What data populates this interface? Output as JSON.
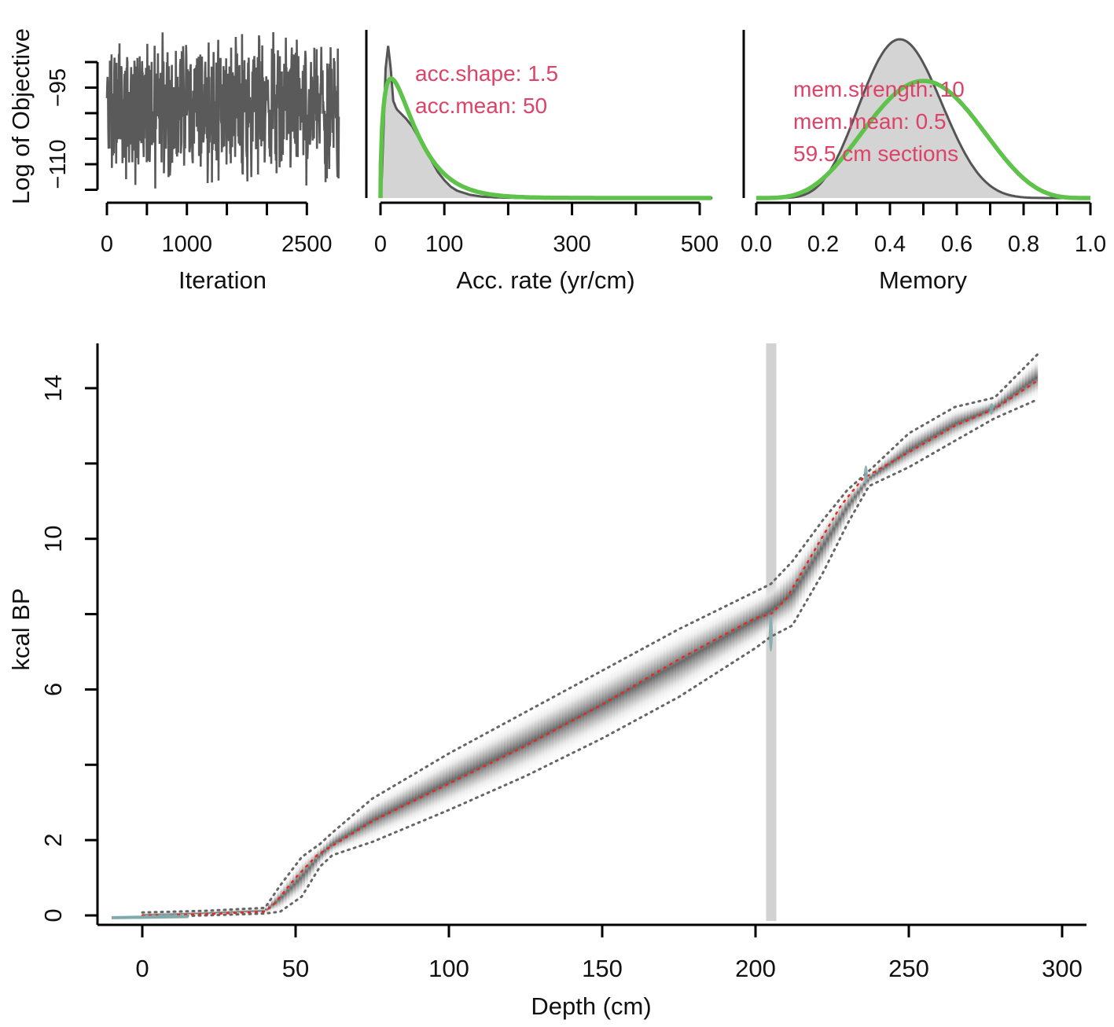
{
  "colors": {
    "trace": "#5a5a5a",
    "prior": "#5fc24a",
    "posterior_fill": "#d4d4d4",
    "posterior_line": "#555555",
    "mean_line": "#e8281e",
    "annotation": "#dc4368",
    "date_marker": "#7fa9aa",
    "hiatus_band": "#d2d2d2"
  },
  "chart_data": [
    {
      "id": "iterations",
      "type": "line",
      "xlabel": "Iteration",
      "ylabel": "Log of Objective",
      "xlim": [
        0,
        2900
      ],
      "ylim": [
        -116,
        -84
      ],
      "xticks": [
        0,
        500,
        1000,
        1500,
        2000,
        2500
      ],
      "xticklabels": [
        {
          "v": 0,
          "t": "0"
        },
        {
          "v": 1000,
          "t": "1000"
        },
        {
          "v": 2500,
          "t": "2500"
        }
      ],
      "yticks": [
        -90,
        -95,
        -100,
        -105,
        -110,
        -115
      ],
      "yticklabels": [
        {
          "v": -95,
          "t": "−95"
        },
        {
          "v": -110,
          "t": "−110"
        }
      ],
      "n_iterations": 2900,
      "mean": -99,
      "range": [
        -116,
        -84
      ]
    },
    {
      "id": "acc-rate",
      "type": "area",
      "xlabel": "Acc. rate (yr/cm)",
      "xlim": [
        0,
        520
      ],
      "xticks": [
        0,
        100,
        200,
        300,
        400,
        500
      ],
      "xticklabels": [
        {
          "v": 0,
          "t": "0"
        },
        {
          "v": 100,
          "t": "100"
        },
        {
          "v": 300,
          "t": "300"
        },
        {
          "v": 500,
          "t": "500"
        }
      ],
      "prior": {
        "distribution": "gamma",
        "shape": 1.5,
        "mean": 50
      },
      "posterior": {
        "x": [
          0,
          2,
          5,
          8,
          12,
          16,
          20,
          25,
          30,
          40,
          50,
          60,
          70,
          80,
          90,
          100,
          110,
          120,
          140,
          160,
          180,
          200,
          240,
          300,
          400,
          520
        ],
        "y": [
          0,
          0.12,
          0.45,
          0.8,
          0.94,
          0.8,
          0.6,
          0.55,
          0.53,
          0.49,
          0.44,
          0.37,
          0.3,
          0.23,
          0.16,
          0.11,
          0.07,
          0.045,
          0.02,
          0.008,
          0.004,
          0.002,
          0.0005,
          0,
          0,
          0
        ]
      },
      "annotations": [
        "acc.shape:  1.5",
        "acc.mean:  50"
      ]
    },
    {
      "id": "memory",
      "type": "area",
      "xlabel": "Memory",
      "xlim": [
        0,
        1
      ],
      "xticks": [
        0,
        0.1,
        0.2,
        0.3,
        0.4,
        0.5,
        0.6,
        0.7,
        0.8,
        0.9,
        1.0
      ],
      "xticklabels": [
        {
          "v": 0,
          "t": "0.0"
        },
        {
          "v": 0.2,
          "t": "0.2"
        },
        {
          "v": 0.4,
          "t": "0.4"
        },
        {
          "v": 0.6,
          "t": "0.6"
        },
        {
          "v": 0.8,
          "t": "0.8"
        },
        {
          "v": 1.0,
          "t": "1.0"
        }
      ],
      "prior": {
        "distribution": "beta",
        "strength": 10,
        "mean": 0.5
      },
      "posterior": {
        "shape": "beta",
        "a": 8,
        "b": 10.3
      },
      "annotations": [
        "mem.strength: 10",
        "mem.mean: 0.5",
        "59.5 cm sections"
      ]
    },
    {
      "id": "age-depth",
      "type": "line",
      "xlabel": "Depth (cm)",
      "ylabel": "kcal BP",
      "xlim": [
        -15,
        307
      ],
      "ylim": [
        -0.2,
        15.2
      ],
      "xticks": [
        0,
        50,
        100,
        150,
        200,
        250,
        300
      ],
      "yticks": [
        0,
        2,
        4,
        6,
        8,
        10,
        12,
        14
      ],
      "xticklabels": [
        {
          "v": 0,
          "t": "0"
        },
        {
          "v": 50,
          "t": "50"
        },
        {
          "v": 100,
          "t": "100"
        },
        {
          "v": 150,
          "t": "150"
        },
        {
          "v": 200,
          "t": "200"
        },
        {
          "v": 250,
          "t": "250"
        },
        {
          "v": 300,
          "t": "300"
        }
      ],
      "yticklabels": [
        {
          "v": 0,
          "t": "0"
        },
        {
          "v": 2,
          "t": "2"
        },
        {
          "v": 6,
          "t": "6"
        },
        {
          "v": 10,
          "t": "10"
        },
        {
          "v": 14,
          "t": "14"
        }
      ],
      "hiatus_depth": 205,
      "mean_age": {
        "depth": [
          0,
          20,
          40,
          43,
          50,
          57,
          62,
          75,
          100,
          125,
          150,
          175,
          200,
          205,
          210,
          220,
          228,
          235,
          250,
          265,
          278,
          292
        ],
        "age": [
          0,
          0.03,
          0.1,
          0.3,
          1.0,
          1.6,
          1.85,
          2.5,
          3.5,
          4.5,
          5.6,
          6.8,
          7.9,
          8.0,
          8.4,
          9.8,
          10.9,
          11.6,
          12.3,
          13.0,
          13.45,
          14.2
        ]
      },
      "upper_95": {
        "depth": [
          0,
          20,
          40,
          45,
          52,
          58,
          62,
          75,
          100,
          125,
          150,
          175,
          200,
          205,
          212,
          222,
          230,
          237,
          250,
          265,
          278,
          292
        ],
        "age": [
          0.08,
          0.12,
          0.2,
          0.8,
          1.55,
          1.9,
          2.2,
          3.1,
          4.3,
          5.4,
          6.5,
          7.6,
          8.6,
          8.8,
          9.4,
          10.5,
          11.3,
          11.8,
          12.8,
          13.5,
          13.75,
          14.9
        ]
      },
      "lower_95": {
        "depth": [
          0,
          20,
          40,
          45,
          52,
          58,
          62,
          75,
          100,
          125,
          150,
          175,
          200,
          205,
          212,
          222,
          230,
          237,
          250,
          265,
          278,
          292
        ],
        "age": [
          -0.05,
          0,
          0.05,
          0.1,
          0.5,
          1.3,
          1.6,
          1.95,
          2.8,
          3.7,
          4.7,
          5.8,
          7.1,
          7.4,
          7.7,
          9.1,
          10.4,
          11.4,
          11.9,
          12.6,
          13.2,
          13.7
        ]
      },
      "dates": [
        {
          "depth": -2,
          "age": -0.05,
          "width": 8,
          "halfheight": 0.02
        },
        {
          "depth": 8,
          "age": 0.0,
          "width": 6,
          "halfheight": 0.02
        },
        {
          "depth": 205,
          "age": 7.5,
          "width": 1.2,
          "halfheight": 0.5
        },
        {
          "depth": 236,
          "age": 11.7,
          "width": 1.2,
          "halfheight": 0.25
        },
        {
          "depth": 277,
          "age": 13.45,
          "width": 1.2,
          "halfheight": 0.15
        }
      ]
    }
  ]
}
